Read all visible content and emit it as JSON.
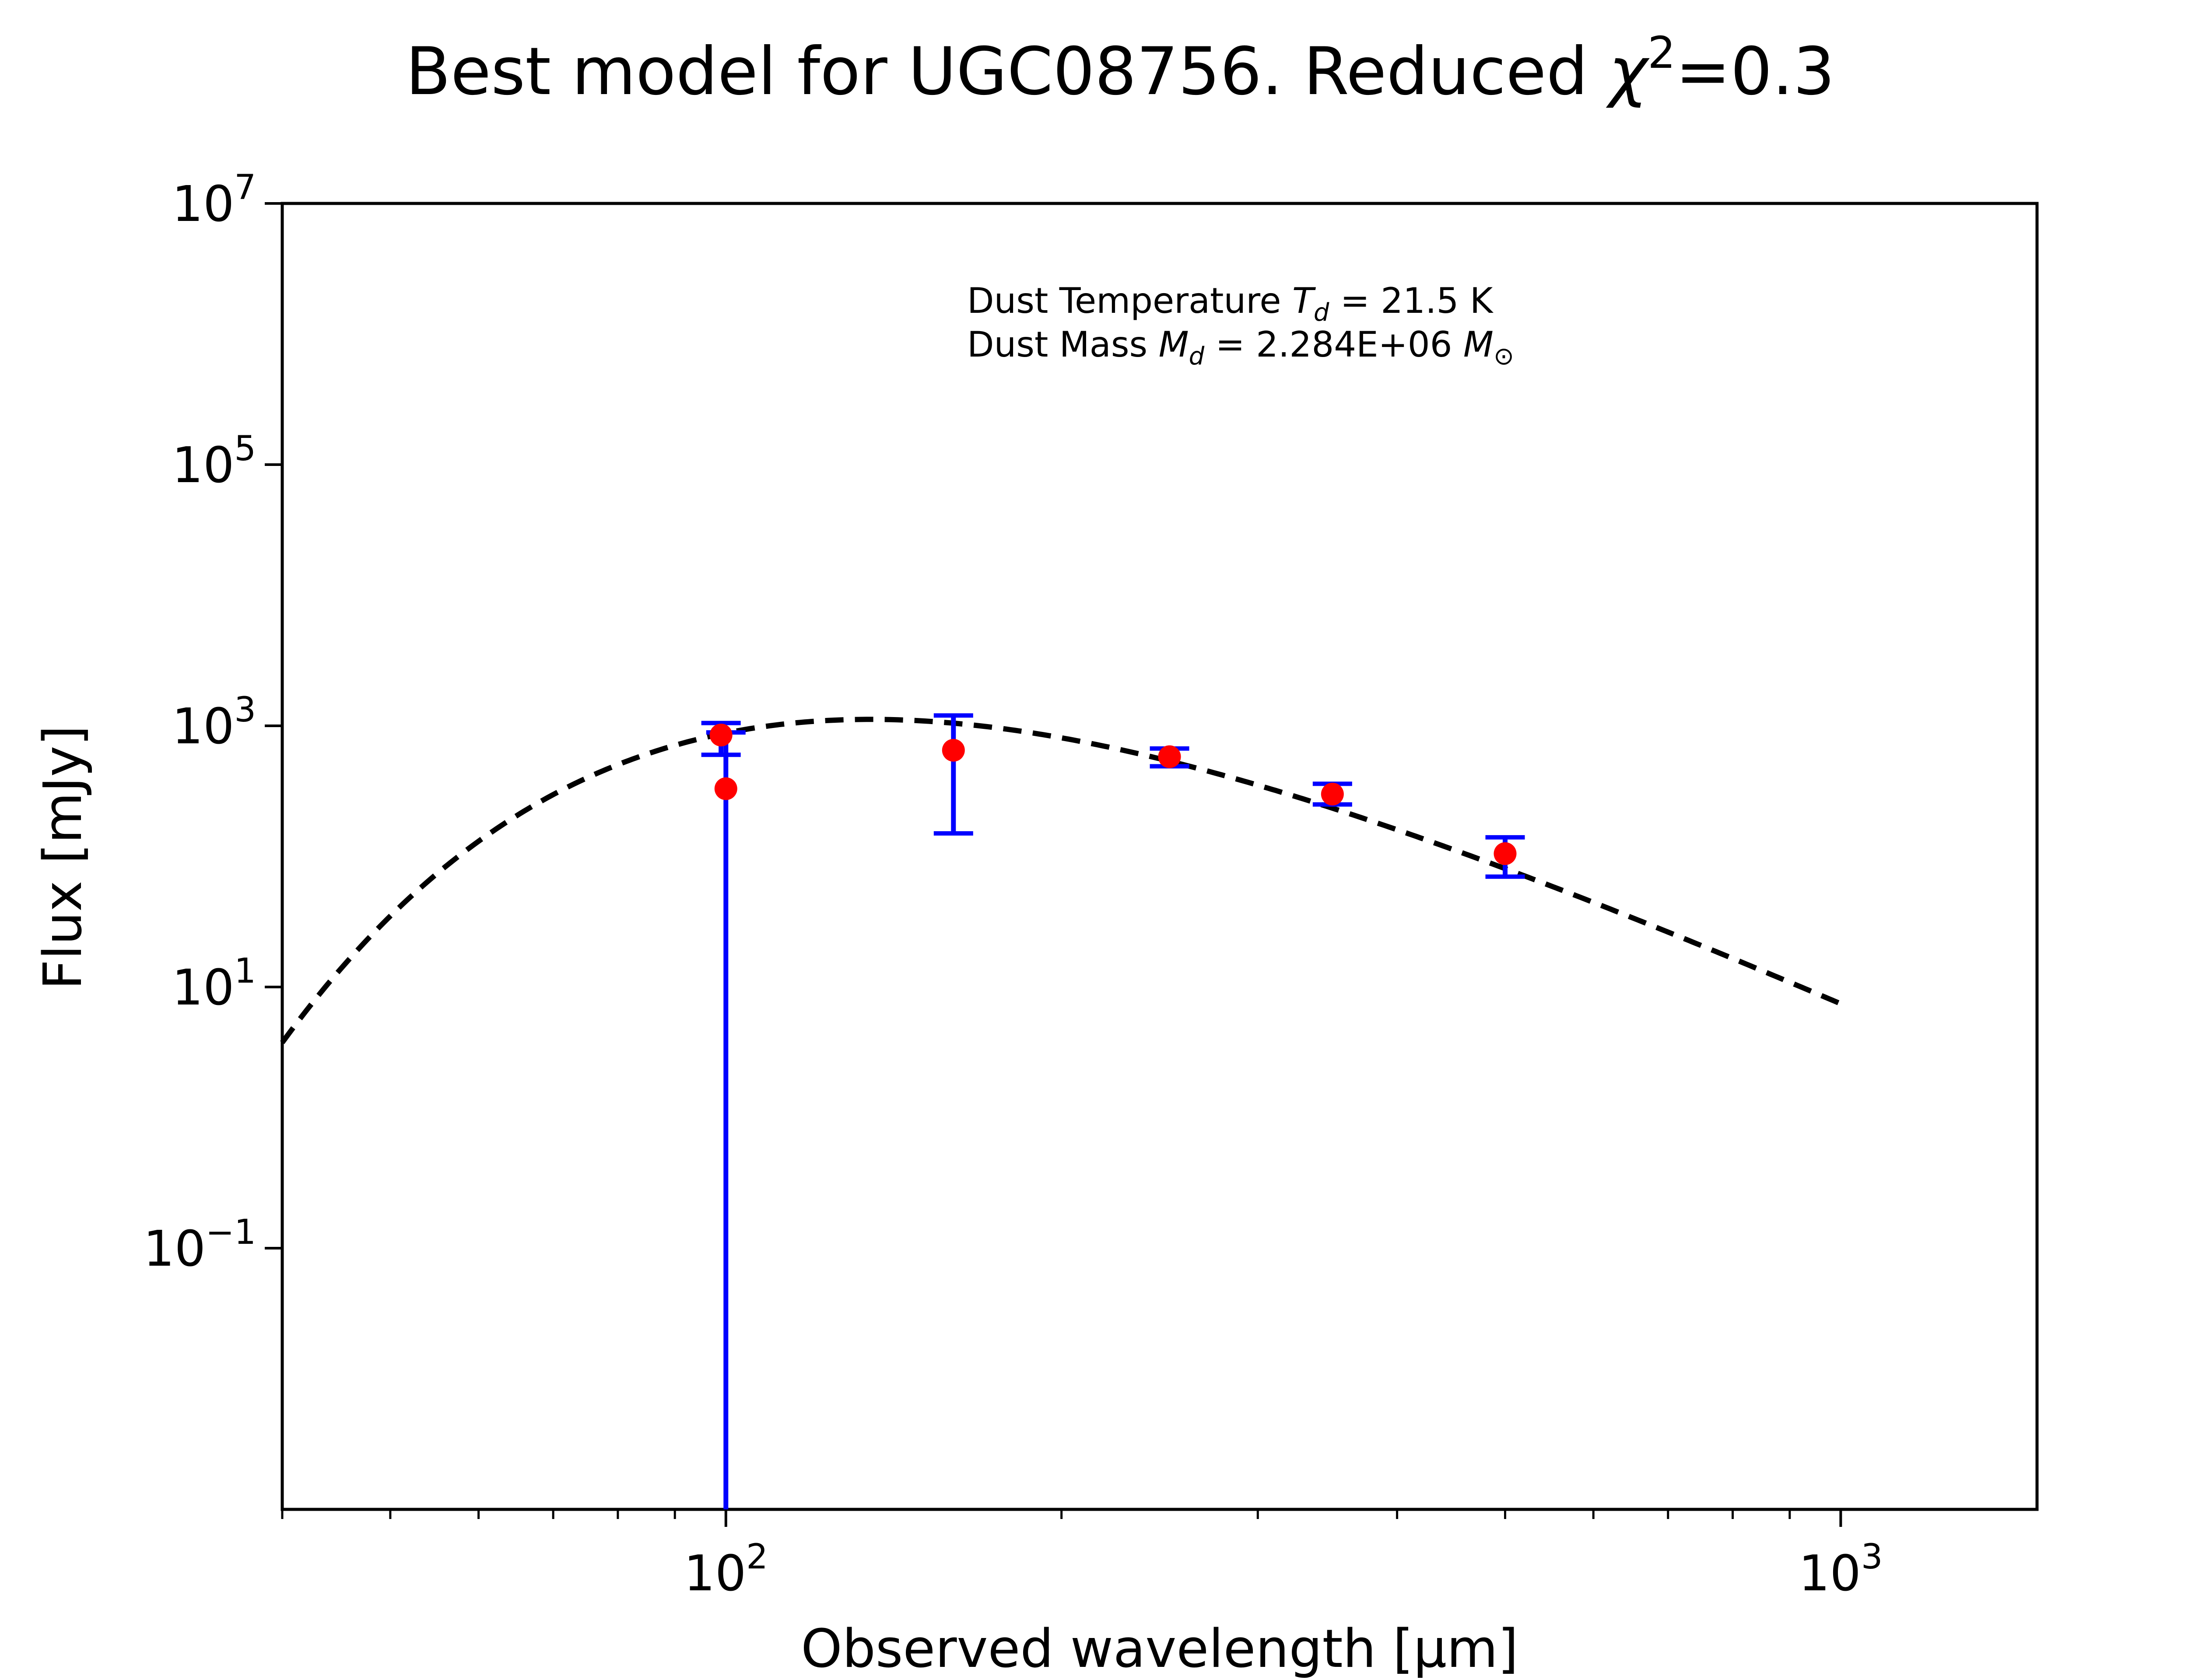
{
  "chart_data": {
    "type": "scatter",
    "title": "Best model for UGC08756. Reduced χ²=0.3",
    "title_parts": {
      "prefix": "Best model for UGC08756. Reduced ",
      "chi": "χ",
      "sup": "2",
      "suffix": "=0.3"
    },
    "xlabel": "Observed wavelength [μm]",
    "ylabel": "Flux [mJy]",
    "x_scale": "log",
    "y_scale": "log",
    "xlim": [
      40,
      1500
    ],
    "ylim": [
      0.001,
      10000000
    ],
    "x_ticks": [
      {
        "base": "10",
        "exp": "2",
        "value": 100
      },
      {
        "base": "10",
        "exp": "3",
        "value": 1000
      }
    ],
    "y_ticks": [
      {
        "base": "10",
        "exp": "−1",
        "value": 0.1
      },
      {
        "base": "10",
        "exp": "1",
        "value": 10
      },
      {
        "base": "10",
        "exp": "3",
        "value": 1000
      },
      {
        "base": "10",
        "exp": "5",
        "value": 100000
      },
      {
        "base": "10",
        "exp": "7",
        "value": 10000000
      }
    ],
    "grid": false,
    "legend": "none",
    "annotations": {
      "line1_prefix": "Dust Temperature ",
      "line1_sym": "T",
      "line1_sub": "d",
      "line1_suffix": " = 21.5 K",
      "line2_prefix": "Dust Mass ",
      "line2_sym": "M",
      "line2_sub": "d",
      "line2_suffix": " = 2.284E+06 ",
      "line2_unit": "M",
      "line2_unit_sub": "⊙"
    },
    "series": [
      {
        "type": "errorbar",
        "color": "#0000ff",
        "marker_color": "#ff0000",
        "points": [
          {
            "x": 99,
            "y": 850,
            "ylow": 600,
            "yhigh": 1050
          },
          {
            "x": 100,
            "y": 330,
            "ylow": 0.001,
            "yhigh": 890
          },
          {
            "x": 160,
            "y": 650,
            "ylow": 150,
            "yhigh": 1200
          },
          {
            "x": 250,
            "y": 580,
            "ylow": 490,
            "yhigh": 670
          },
          {
            "x": 350,
            "y": 300,
            "ylow": 250,
            "yhigh": 360
          },
          {
            "x": 500,
            "y": 105,
            "ylow": 70,
            "yhigh": 140
          }
        ]
      },
      {
        "type": "line",
        "style": "dashed",
        "color": "#000000",
        "model": "modified blackbody, beta=2",
        "temperature_K": 21.5,
        "peak_flux": 1120,
        "x_range": [
          40,
          1000
        ]
      }
    ]
  },
  "colors": {
    "errorbar": "#0000ff",
    "marker": "#ff0000",
    "model_line": "#000000",
    "axes": "#000000"
  }
}
